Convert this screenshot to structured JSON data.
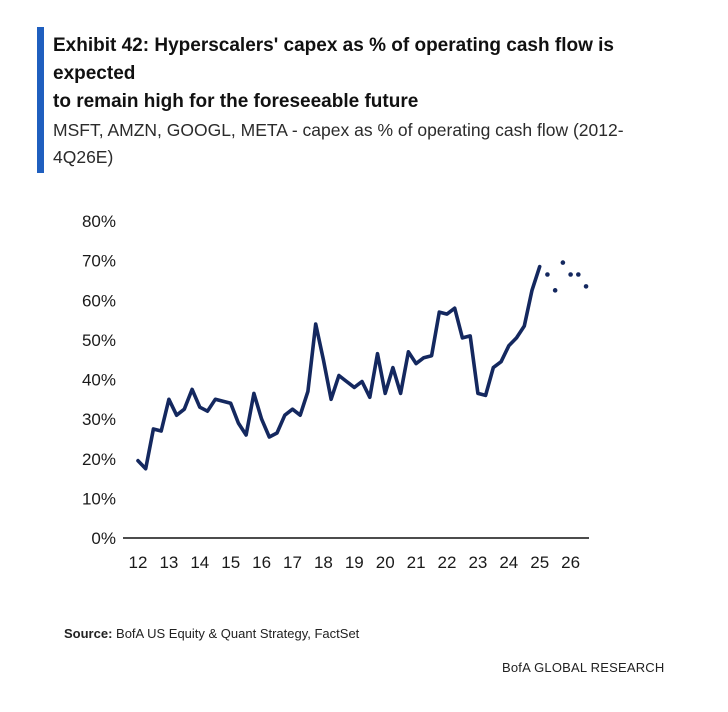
{
  "header": {
    "title_lines": [
      "Exhibit 42: Hyperscalers' capex as % of operating cash flow is",
      "expected",
      "to remain high for the foreseeable future"
    ],
    "subtitle_lines": [
      "MSFT, AMZN, GOOGL, META - capex as % of operating cash flow (2012-",
      "4Q26E)"
    ]
  },
  "footer": {
    "source_label": "Source:",
    "source_text": " BofA US Equity & Quant Strategy, FactSet",
    "brand": "BofA GLOBAL RESEARCH"
  },
  "colors": {
    "accent": "#1f5fbf",
    "series": "#14285f",
    "axis": "#111111"
  },
  "chart_data": {
    "type": "line",
    "title": "",
    "xlabel": "",
    "ylabel": "",
    "ylim": [
      0,
      80
    ],
    "yticks": [
      "0%",
      "10%",
      "20%",
      "30%",
      "40%",
      "50%",
      "60%",
      "70%",
      "80%"
    ],
    "xticks": [
      "12",
      "13",
      "14",
      "15",
      "16",
      "17",
      "18",
      "19",
      "20",
      "21",
      "22",
      "23",
      "24",
      "25",
      "26"
    ],
    "grid": false,
    "legend": "none",
    "series": [
      {
        "style": "solid",
        "x": [
          2012.0,
          2012.25,
          2012.5,
          2012.75,
          2013.0,
          2013.25,
          2013.5,
          2013.75,
          2014.0,
          2014.25,
          2014.5,
          2014.75,
          2015.0,
          2015.25,
          2015.5,
          2015.75,
          2016.0,
          2016.25,
          2016.5,
          2016.75,
          2017.0,
          2017.25,
          2017.5,
          2017.75,
          2018.0,
          2018.25,
          2018.5,
          2018.75,
          2019.0,
          2019.25,
          2019.5,
          2019.75,
          2020.0,
          2020.25,
          2020.5,
          2020.75,
          2021.0,
          2021.25,
          2021.5,
          2021.75,
          2022.0,
          2022.25,
          2022.5,
          2022.75,
          2023.0,
          2023.25,
          2023.5,
          2023.75,
          2024.0,
          2024.25,
          2024.5,
          2024.75,
          2025.0
        ],
        "values": [
          19.5,
          17.5,
          27.5,
          27,
          35,
          31,
          32.5,
          37.5,
          33,
          32,
          35,
          34.5,
          34,
          29,
          26,
          36.5,
          30,
          25.5,
          26.5,
          31,
          32.5,
          31,
          37,
          54,
          45,
          35,
          41,
          39.5,
          38,
          39.5,
          35.5,
          46.5,
          36.5,
          43,
          36.5,
          47,
          44,
          45.5,
          46,
          57,
          56.5,
          58,
          50.5,
          51,
          36.5,
          36,
          43,
          44.5,
          48.5,
          50.5,
          53.5,
          62.5,
          68.5
        ]
      },
      {
        "style": "dotted",
        "x": [
          2025.25,
          2025.5,
          2025.75,
          2026.0,
          2026.25,
          2026.5
        ],
        "values": [
          66.5,
          62.5,
          69.5,
          66.5,
          66.5,
          63.5
        ]
      }
    ]
  }
}
